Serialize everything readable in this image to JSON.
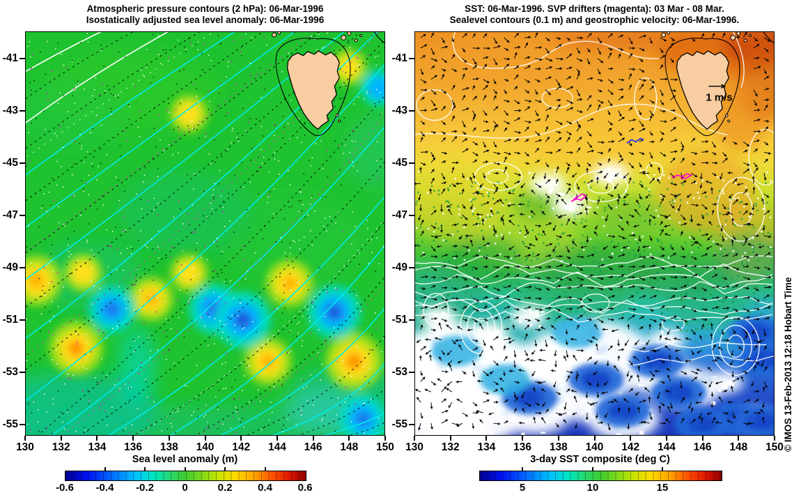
{
  "figure": {
    "watermark": "© IMOS 13-Feb-2013 12:18 Hobart Time",
    "panels": [
      {
        "title_line1": "Atmospheric pressure contours (2 hPa): 06-Mar-1996",
        "title_line2": "Isostatically adjusted sea level anomaly: 06-Mar-1996",
        "x_tick_labels": [
          "130",
          "132",
          "134",
          "136",
          "138",
          "140",
          "142",
          "144",
          "146",
          "148",
          "150"
        ],
        "y_tick_labels": [
          "-41",
          "-43",
          "-45",
          "-47",
          "-49",
          "-51",
          "-53",
          "-55"
        ],
        "colorbar": {
          "label": "Sea level anomaly (m)",
          "tick_labels": [
            "-0.6",
            "-0.4",
            "-0.2",
            "0",
            "0.2",
            "0.4",
            "0.6"
          ]
        }
      },
      {
        "title_line1": "SST: 06-Mar-1996. SVP drifters (magenta): 03 Mar - 08 Mar.",
        "title_line2": "Sealevel contours (0.1 m) and geostrophic velocity: 06-Mar-1996.",
        "x_tick_labels": [
          "130",
          "132",
          "134",
          "136",
          "138",
          "140",
          "142",
          "144",
          "146",
          "148",
          "150"
        ],
        "y_tick_labels": [
          "-41",
          "-43",
          "-45",
          "-47",
          "-49",
          "-51",
          "-53",
          "-55"
        ],
        "colorbar": {
          "label": "3-day SST composite (deg C)",
          "tick_labels": [
            "5",
            "10",
            "15"
          ]
        },
        "reference_arrow_label": "1 m/s"
      }
    ]
  },
  "chart_data": [
    {
      "type": "heatmap",
      "panel": "left",
      "title": "Atmospheric pressure contours (2 hPa) over isostatically adjusted sea level anomaly, 06-Mar-1996",
      "x_range": [
        130,
        150
      ],
      "y_range": [
        -55.4,
        -40.0
      ],
      "x_ticks": [
        130,
        132,
        134,
        136,
        138,
        140,
        142,
        144,
        146,
        148,
        150
      ],
      "y_ticks": [
        -41,
        -43,
        -45,
        -47,
        -49,
        -51,
        -53,
        -55
      ],
      "colorbar": {
        "label": "Sea level anomaly (m)",
        "ticks": [
          -0.6,
          -0.4,
          -0.2,
          0,
          0.2,
          0.4,
          0.6
        ],
        "colormap": "jet"
      },
      "pressure_contours": {
        "interval_hPa": 2,
        "solid_colors": [
          "white",
          "cyan"
        ],
        "dotted_colors": [
          "black",
          "magenta",
          "white"
        ]
      },
      "land": [
        "Tasmania"
      ],
      "sea_level_anomaly_features": [
        {
          "lon": 130.6,
          "lat": -49.5,
          "anomaly_m": 0.35
        },
        {
          "lon": 133.2,
          "lat": -49.2,
          "anomaly_m": 0.15
        },
        {
          "lon": 132.8,
          "lat": -52.1,
          "anomaly_m": 0.4
        },
        {
          "lon": 137.0,
          "lat": -50.2,
          "anomaly_m": 0.25
        },
        {
          "lon": 139.1,
          "lat": -49.2,
          "anomaly_m": 0.15
        },
        {
          "lon": 139.1,
          "lat": -43.1,
          "anomaly_m": 0.15
        },
        {
          "lon": 148.0,
          "lat": -41.3,
          "anomaly_m": 0.12
        },
        {
          "lon": 144.7,
          "lat": -49.6,
          "anomaly_m": 0.3
        },
        {
          "lon": 143.5,
          "lat": -52.6,
          "anomaly_m": 0.3
        },
        {
          "lon": 148.3,
          "lat": -52.6,
          "anomaly_m": 0.45
        },
        {
          "lon": 134.8,
          "lat": -50.6,
          "anomaly_m": -0.3
        },
        {
          "lon": 140.5,
          "lat": -50.6,
          "anomaly_m": -0.35
        },
        {
          "lon": 142.1,
          "lat": -51.0,
          "anomaly_m": -0.45
        },
        {
          "lon": 147.2,
          "lat": -50.7,
          "anomaly_m": -0.4
        },
        {
          "lon": 148.8,
          "lat": -54.8,
          "anomaly_m": -0.3
        },
        {
          "lon": 149.7,
          "lat": -42.1,
          "anomaly_m": -0.15
        }
      ]
    },
    {
      "type": "heatmap",
      "panel": "right",
      "title": "3-day SST composite with sealevel contours (0.1 m), geostrophic velocity and SVP drifters",
      "x_range": [
        130,
        150
      ],
      "y_range": [
        -55.4,
        -40.0
      ],
      "x_ticks": [
        130,
        132,
        134,
        136,
        138,
        140,
        142,
        144,
        146,
        148,
        150
      ],
      "y_ticks": [
        -41,
        -43,
        -45,
        -47,
        -49,
        -51,
        -53,
        -55
      ],
      "colorbar": {
        "label": "3-day SST composite (deg C)",
        "ticks": [
          5,
          10,
          15
        ],
        "colormap": "jet",
        "range_estimate_c": [
          2,
          19
        ]
      },
      "sealevel_contour_interval_m": 0.1,
      "velocity_reference": {
        "label": "1 m/s"
      },
      "sst_estimates_by_lat": [
        {
          "lat": -40.5,
          "sst_c": 17.5
        },
        {
          "lat": -42.0,
          "sst_c": 16.5
        },
        {
          "lat": -44.0,
          "sst_c": 14.5
        },
        {
          "lat": -46.0,
          "sst_c": 12.5
        },
        {
          "lat": -48.0,
          "sst_c": 10.5
        },
        {
          "lat": -50.0,
          "sst_c": 9.0
        },
        {
          "lat": -52.0,
          "sst_c": 7.5
        },
        {
          "lat": -54.0,
          "sst_c": 5.0
        }
      ],
      "warm_feature": {
        "description": "warmest water (17-19 C) north and east of Tasmania",
        "lon": 148,
        "lat": -41
      },
      "cloud_gaps": [
        {
          "lon": 131.8,
          "lat": -53.6,
          "size": "big"
        },
        {
          "lon": 133.0,
          "lat": -54.4,
          "size": "big"
        },
        {
          "lon": 134.0,
          "lat": -53.1,
          "size": "big"
        },
        {
          "lon": 132.5,
          "lat": -52.6,
          "size": "big"
        },
        {
          "lon": 140.0,
          "lat": -52.5,
          "size": "big"
        },
        {
          "lon": 131.0,
          "lat": -52.2,
          "size": "med"
        },
        {
          "lon": 135.0,
          "lat": -53.9,
          "size": "med"
        },
        {
          "lon": 135.7,
          "lat": -52.7,
          "size": "med"
        },
        {
          "lon": 137.6,
          "lat": -53.1,
          "size": "med"
        },
        {
          "lon": 136.7,
          "lat": -54.6,
          "size": "med"
        },
        {
          "lon": 139.6,
          "lat": -54.1,
          "size": "med"
        },
        {
          "lon": 141.6,
          "lat": -54.8,
          "size": "med"
        },
        {
          "lon": 145.1,
          "lat": -53.6,
          "size": "med"
        },
        {
          "lon": 143.3,
          "lat": -53.0,
          "size": "med"
        },
        {
          "lon": 138.3,
          "lat": -52.2,
          "size": "med"
        },
        {
          "lon": 136.3,
          "lat": -50.9,
          "size": "small"
        },
        {
          "lon": 138.6,
          "lat": -46.6,
          "size": "small"
        },
        {
          "lon": 137.4,
          "lat": -45.8,
          "size": "small"
        },
        {
          "lon": 140.9,
          "lat": -45.4,
          "size": "small"
        },
        {
          "lon": 134.2,
          "lat": -51.5,
          "size": "small"
        },
        {
          "lon": 131.3,
          "lat": -50.9,
          "size": "small"
        },
        {
          "lon": 147.3,
          "lat": -53.4,
          "size": "small"
        },
        {
          "lon": 148.9,
          "lat": -54.8,
          "size": "small"
        },
        {
          "lon": 144.0,
          "lat": -51.8,
          "size": "small"
        }
      ],
      "cold_patches": [
        {
          "lon": 136.4,
          "lat": -54.0,
          "type": "blue"
        },
        {
          "lon": 141.6,
          "lat": -54.5,
          "type": "blue"
        },
        {
          "lon": 144.7,
          "lat": -53.8,
          "type": "blue"
        },
        {
          "lon": 148.0,
          "lat": -54.8,
          "type": "blue"
        },
        {
          "lon": 149.5,
          "lat": -52.5,
          "type": "blue"
        },
        {
          "lon": 140.1,
          "lat": -53.3,
          "type": "blue"
        },
        {
          "lon": 143.5,
          "lat": -52.6,
          "type": "blue"
        },
        {
          "lon": 149.3,
          "lat": -54.9,
          "type": "blue"
        },
        {
          "lon": 146.0,
          "lat": -55.0,
          "type": "blue"
        },
        {
          "lon": 149.0,
          "lat": -51.5,
          "type": "blue"
        },
        {
          "lon": 132.3,
          "lat": -52.2,
          "type": "cyan"
        },
        {
          "lon": 135.0,
          "lat": -53.3,
          "type": "cyan"
        },
        {
          "lon": 139.0,
          "lat": -51.5,
          "type": "cyan"
        }
      ],
      "drifter_tracks": [
        {
          "color": "magenta",
          "lon": 139.2,
          "lat": -46.3
        },
        {
          "color": "magenta",
          "lon": 144.8,
          "lat": -45.5
        },
        {
          "color": "blue",
          "lon": 142.3,
          "lat": -44.1
        },
        {
          "color": "red",
          "lon": 145.4,
          "lat": -42.2
        }
      ]
    }
  ]
}
